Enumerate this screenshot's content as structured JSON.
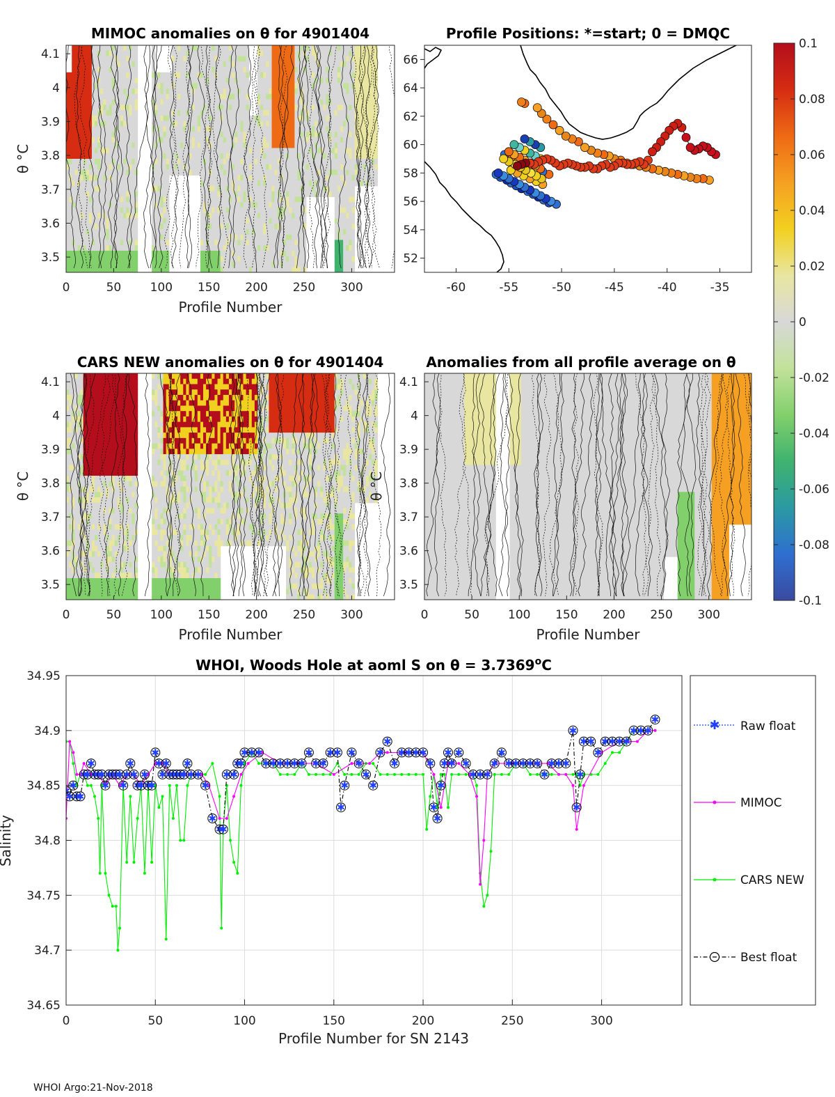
{
  "footer": "WHOI Argo:21-Nov-2018",
  "panels": {
    "mimoc": {
      "title": "MIMOC anomalies on θ  for 4901404",
      "xlabel": "Profile Number",
      "ylabel": "θ °C"
    },
    "positions": {
      "title": "Profile Positions: *=start; 0 = DMQC"
    },
    "cars": {
      "title": "CARS NEW anomalies on θ for 4901404",
      "xlabel": "Profile Number",
      "ylabel": "θ °C"
    },
    "allavg": {
      "title": "Anomalies from all profile average on θ",
      "xlabel": "Profile Number",
      "ylabel": "θ °C"
    }
  },
  "colorbar": {
    "ticks": [
      "0.1",
      "0.08",
      "0.06",
      "0.04",
      "0.02",
      "0",
      "-0.02",
      "-0.04",
      "-0.06",
      "-0.08",
      "-0.1"
    ],
    "colors": [
      "#b40e1c",
      "#d52c12",
      "#ee6a14",
      "#f5a022",
      "#f2d020",
      "#e8e6a0",
      "#d8d8d8",
      "#c2e29a",
      "#82d06c",
      "#3fb36e",
      "#2b9aa2",
      "#2f6fd0",
      "#3a4aa0"
    ]
  },
  "axes_text": {
    "theta_ticks": [
      "4.1",
      "4",
      "3.9",
      "3.8",
      "3.7",
      "3.6",
      "3.5"
    ],
    "profile_ticks": [
      "0",
      "50",
      "100",
      "150",
      "200",
      "250",
      "300"
    ],
    "lat_ticks": [
      "66",
      "64",
      "62",
      "60",
      "58",
      "56",
      "54",
      "52"
    ],
    "lon_ticks": [
      "-60",
      "-55",
      "-50",
      "-45",
      "-40",
      "-35"
    ]
  },
  "chart_data": [
    {
      "type": "line",
      "title": "WHOI, Woods Hole at aoml S on θ = 3.7369°C",
      "title_main": "WHOI, Woods Hole at aoml S on θ = 3.7369",
      "title_sup": "o",
      "title_unit": "C",
      "xlabel": "Profile Number for SN 2143",
      "ylabel": "Salinity",
      "xlim": [
        0,
        345
      ],
      "ylim": [
        34.65,
        34.95
      ],
      "xticks": [
        "0",
        "50",
        "100",
        "150",
        "200",
        "250",
        "300"
      ],
      "yticks": [
        "34.95",
        "34.9",
        "34.85",
        "34.8",
        "34.75",
        "34.7",
        "34.65"
      ],
      "legend": [
        "Raw float",
        "MIMOC",
        "CARS NEW",
        "Best float"
      ],
      "series": [
        {
          "name": "MIMOC",
          "color": "#ff00ff",
          "x": [
            0,
            2,
            4,
            6,
            8,
            10,
            14,
            18,
            22,
            26,
            30,
            34,
            38,
            42,
            46,
            50,
            54,
            58,
            62,
            66,
            70,
            76,
            80,
            86,
            90,
            94,
            98,
            102,
            110,
            120,
            130,
            140,
            150,
            160,
            170,
            176,
            180,
            190,
            200,
            206,
            210,
            214,
            220,
            226,
            230,
            232,
            234,
            236,
            240,
            250,
            260,
            270,
            276,
            280,
            284,
            286,
            290,
            300,
            310,
            320,
            326,
            330
          ],
          "y": [
            34.82,
            34.89,
            34.88,
            34.86,
            34.86,
            34.87,
            34.86,
            34.86,
            34.85,
            34.86,
            34.85,
            34.86,
            34.86,
            34.85,
            34.86,
            34.87,
            34.87,
            34.86,
            34.86,
            34.86,
            34.86,
            34.86,
            34.85,
            34.82,
            34.82,
            34.84,
            34.86,
            34.87,
            34.88,
            34.87,
            34.87,
            34.87,
            34.86,
            34.87,
            34.87,
            34.88,
            34.88,
            34.88,
            34.88,
            34.86,
            34.83,
            34.87,
            34.87,
            34.86,
            34.84,
            34.76,
            34.8,
            34.86,
            34.87,
            34.87,
            34.87,
            34.87,
            34.86,
            34.86,
            34.85,
            34.81,
            34.85,
            34.88,
            34.89,
            34.89,
            34.9,
            34.9
          ]
        },
        {
          "name": "CARS NEW",
          "color": "#00ee00",
          "x": [
            0,
            2,
            4,
            6,
            8,
            10,
            12,
            14,
            16,
            18,
            19,
            20,
            22,
            24,
            26,
            28,
            29,
            30,
            32,
            34,
            36,
            38,
            40,
            42,
            44,
            46,
            48,
            50,
            52,
            54,
            56,
            58,
            60,
            62,
            64,
            66,
            68,
            70,
            74,
            78,
            82,
            86,
            87,
            88,
            90,
            92,
            94,
            96,
            98,
            100,
            104,
            108,
            112,
            116,
            120,
            124,
            128,
            132,
            136,
            140,
            144,
            148,
            152,
            156,
            160,
            164,
            168,
            172,
            176,
            180,
            184,
            188,
            192,
            196,
            200,
            202,
            204,
            206,
            208,
            210,
            212,
            214,
            216,
            220,
            224,
            228,
            230,
            232,
            234,
            236,
            238,
            240,
            244,
            248,
            252,
            256,
            260,
            264,
            268,
            272,
            276,
            280,
            284,
            286,
            288,
            290,
            294,
            298,
            302,
            306,
            310,
            314,
            318,
            322,
            326,
            330
          ],
          "y": [
            34.89,
            34.89,
            34.87,
            34.85,
            34.86,
            34.86,
            34.85,
            34.85,
            34.84,
            34.82,
            34.77,
            34.85,
            34.77,
            34.75,
            34.74,
            34.74,
            34.7,
            34.72,
            34.85,
            34.78,
            34.84,
            34.78,
            34.82,
            34.85,
            34.77,
            34.85,
            34.78,
            34.85,
            34.83,
            34.84,
            34.71,
            34.85,
            34.82,
            34.85,
            34.8,
            34.8,
            34.85,
            34.86,
            34.86,
            34.86,
            34.87,
            34.84,
            34.72,
            34.81,
            34.85,
            34.8,
            34.78,
            34.77,
            34.85,
            34.87,
            34.88,
            34.87,
            34.87,
            34.87,
            34.86,
            34.86,
            34.86,
            34.87,
            34.86,
            34.86,
            34.86,
            34.86,
            34.87,
            34.86,
            34.86,
            34.86,
            34.87,
            34.87,
            34.86,
            34.86,
            34.86,
            34.86,
            34.86,
            34.86,
            34.86,
            34.81,
            34.84,
            34.86,
            34.83,
            34.86,
            34.86,
            34.83,
            34.86,
            34.86,
            34.86,
            34.86,
            34.85,
            34.77,
            34.74,
            34.75,
            34.79,
            34.86,
            34.86,
            34.86,
            34.87,
            34.87,
            34.86,
            34.86,
            34.86,
            34.86,
            34.86,
            34.86,
            34.86,
            34.86,
            34.85,
            34.86,
            34.86,
            34.86,
            34.87,
            34.88,
            34.88,
            34.89,
            34.9,
            34.9,
            34.9,
            34.9
          ]
        },
        {
          "name": "Best float",
          "color": "#000000",
          "x": [
            0,
            2,
            4,
            6,
            8,
            10,
            12,
            14,
            16,
            18,
            20,
            22,
            24,
            26,
            28,
            30,
            32,
            34,
            36,
            38,
            40,
            42,
            44,
            46,
            48,
            50,
            52,
            54,
            56,
            58,
            60,
            62,
            64,
            66,
            68,
            70,
            74,
            78,
            82,
            86,
            88,
            90,
            94,
            96,
            98,
            100,
            104,
            108,
            112,
            116,
            120,
            124,
            128,
            132,
            136,
            140,
            144,
            148,
            152,
            154,
            156,
            160,
            164,
            168,
            172,
            176,
            180,
            184,
            188,
            192,
            196,
            200,
            204,
            206,
            208,
            210,
            212,
            214,
            216,
            220,
            224,
            228,
            232,
            236,
            240,
            244,
            248,
            252,
            256,
            260,
            264,
            268,
            272,
            276,
            280,
            284,
            286,
            288,
            290,
            294,
            298,
            302,
            306,
            310,
            314,
            318,
            322,
            326,
            330
          ],
          "y": [
            34.845,
            34.84,
            34.85,
            34.84,
            34.84,
            34.86,
            34.86,
            34.87,
            34.86,
            34.86,
            34.86,
            34.85,
            34.86,
            34.86,
            34.86,
            34.86,
            34.85,
            34.86,
            34.87,
            34.86,
            34.85,
            34.85,
            34.86,
            34.85,
            34.85,
            34.88,
            34.87,
            34.86,
            34.87,
            34.86,
            34.86,
            34.86,
            34.86,
            34.86,
            34.87,
            34.86,
            34.86,
            34.85,
            34.82,
            34.81,
            34.81,
            34.86,
            34.86,
            34.87,
            34.87,
            34.88,
            34.88,
            34.88,
            34.87,
            34.87,
            34.87,
            34.87,
            34.87,
            34.87,
            34.88,
            34.87,
            34.87,
            34.88,
            34.88,
            34.83,
            34.85,
            34.88,
            34.87,
            34.86,
            34.85,
            34.88,
            34.89,
            34.87,
            34.88,
            34.88,
            34.88,
            34.88,
            34.87,
            34.83,
            34.82,
            34.85,
            34.87,
            34.88,
            34.87,
            34.88,
            34.87,
            34.86,
            34.86,
            34.86,
            34.87,
            34.88,
            34.87,
            34.87,
            34.87,
            34.87,
            34.87,
            34.86,
            34.87,
            34.87,
            34.87,
            34.9,
            34.83,
            34.86,
            34.89,
            34.89,
            34.88,
            34.89,
            34.89,
            34.89,
            34.89,
            34.9,
            34.9,
            34.9,
            34.91
          ]
        }
      ]
    },
    {
      "type": "scatter",
      "title": "Profile Positions: *=start; 0 = DMQC",
      "xlim": [
        -63,
        -32
      ],
      "ylim": [
        51,
        67
      ],
      "x": [
        -54.2,
        -53.8,
        -53.4,
        -53.0,
        -52.6,
        -52.2,
        -51.8,
        -51.4,
        -51.0,
        -50.6,
        -50.2,
        -49.8,
        -49.4,
        -49.0,
        -48.6,
        -48.2,
        -47.8,
        -47.4,
        -47.0,
        -46.6,
        -46.2,
        -45.8,
        -45.4,
        -45.0,
        -44.6,
        -44.2,
        -43.8,
        -43.4,
        -43.0,
        -42.6,
        -42.2,
        -41.8,
        -41.4,
        -41.0,
        -40.6,
        -40.2,
        -39.8,
        -39.4,
        -39.0,
        -38.6,
        -38.2,
        -37.8,
        -37.4,
        -37.0,
        -36.6,
        -36.2,
        -35.8,
        -35.4,
        -53.8,
        -53.5,
        -52.3,
        -51.9,
        -51.4,
        -50.8,
        -50.2,
        -49.6,
        -49.0,
        -48.4,
        -47.8,
        -47.2,
        -46.6,
        -46.0,
        -45.5,
        -45.0,
        -44.4,
        -43.8,
        -43.2,
        -42.6,
        -42.0,
        -41.4,
        -40.8,
        -40.2,
        -39.6,
        -39.0,
        -38.4,
        -37.8,
        -37.2,
        -36.6,
        -36.0,
        -56.0,
        -55.5,
        -55.0,
        -54.5,
        -54.0,
        -53.5,
        -53.0,
        -52.5,
        -52.0,
        -51.5,
        -51.0,
        -50.5,
        -56.2,
        -55.8,
        -55.2,
        -54.8,
        -54.3,
        -53.8,
        -53.2,
        -52.7,
        -52.2,
        -51.7,
        -51.2,
        -55.5,
        -55.0,
        -54.4,
        -53.9,
        -53.4,
        -52.9,
        -52.4,
        -51.9,
        -55.0,
        -54.5,
        -54.0,
        -53.5,
        -53.0,
        -52.5,
        -52.0,
        -54.5,
        -54.0,
        -53.5,
        -53.0,
        -52.5,
        -52.0,
        -53.5,
        -53.0,
        -52.5,
        -52.0,
        -54.8,
        -54.2,
        -53.6,
        -53.0,
        -52.4,
        -51.8,
        -55.4,
        -54.8,
        -54.2,
        -53.6,
        -53.0,
        -52.4,
        -51.8,
        -51.2
      ],
      "y": [
        58.5,
        58.6,
        58.7,
        58.7,
        58.6,
        58.8,
        58.9,
        59.0,
        58.9,
        58.7,
        58.5,
        58.6,
        58.7,
        58.6,
        58.5,
        58.4,
        58.4,
        58.5,
        58.3,
        58.3,
        58.5,
        58.6,
        58.4,
        58.5,
        58.7,
        58.7,
        58.6,
        58.6,
        58.7,
        58.8,
        58.6,
        58.9,
        59.5,
        59.8,
        60.2,
        60.6,
        61.0,
        61.3,
        61.5,
        61.2,
        60.5,
        59.8,
        59.6,
        59.7,
        59.9,
        59.8,
        59.5,
        59.3,
        63.0,
        62.9,
        62.6,
        62.2,
        61.8,
        61.4,
        61.0,
        60.6,
        60.4,
        60.2,
        59.8,
        59.6,
        59.4,
        59.3,
        59.2,
        59.0,
        58.9,
        58.7,
        58.6,
        58.5,
        58.4,
        58.3,
        58.2,
        58.1,
        58.0,
        57.9,
        57.8,
        57.7,
        57.6,
        57.6,
        57.5,
        58.0,
        57.8,
        57.6,
        57.4,
        57.2,
        57.0,
        56.8,
        56.6,
        56.4,
        56.2,
        56.0,
        55.8,
        57.9,
        57.7,
        57.5,
        57.3,
        57.1,
        56.9,
        56.7,
        56.5,
        56.3,
        56.1,
        55.9,
        59.0,
        58.8,
        58.6,
        58.4,
        58.2,
        58.0,
        57.8,
        57.6,
        59.5,
        59.3,
        59.1,
        58.9,
        58.7,
        58.5,
        58.3,
        60.0,
        59.8,
        59.6,
        59.4,
        59.2,
        59.0,
        60.4,
        60.2,
        60.0,
        59.8,
        58.2,
        58.0,
        57.8,
        57.6,
        57.4,
        57.2,
        59.3,
        59.1,
        58.9,
        58.7,
        58.5,
        58.3,
        58.1,
        57.9
      ]
    }
  ]
}
